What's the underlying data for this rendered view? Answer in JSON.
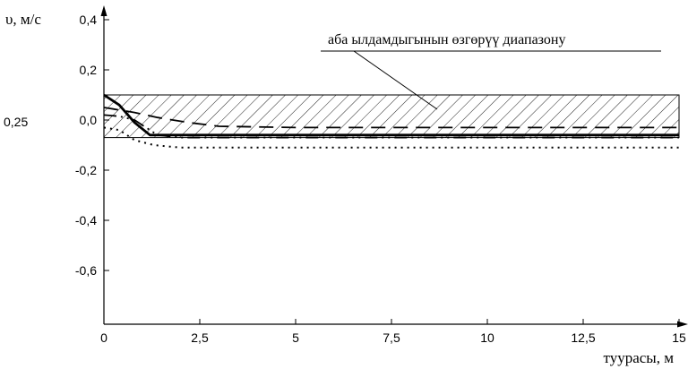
{
  "chart_data": {
    "type": "line",
    "ylabel": "υ, м/с",
    "xlabel": "туурасы, м",
    "annotation": "аба ылдамдыгынын өзгөрүү диапазону",
    "band_level_label": "0,25",
    "xlim": [
      0,
      15
    ],
    "ylim": [
      -0.85,
      0.4
    ],
    "xticks": [
      {
        "value": 0,
        "label": "0"
      },
      {
        "value": 2.5,
        "label": "2,5"
      },
      {
        "value": 5,
        "label": "5"
      },
      {
        "value": 7.5,
        "label": "7,5"
      },
      {
        "value": 10,
        "label": "10"
      },
      {
        "value": 12.5,
        "label": "12,5"
      },
      {
        "value": 15,
        "label": "15"
      }
    ],
    "yticks": [
      {
        "value": 0.4,
        "label": "0,4"
      },
      {
        "value": 0.2,
        "label": "0,2"
      },
      {
        "value": 0.0,
        "label": "0,0"
      },
      {
        "value": -0.2,
        "label": "-0,2"
      },
      {
        "value": -0.4,
        "label": "-0,4"
      },
      {
        "value": -0.6,
        "label": "-0,6"
      }
    ],
    "band": {
      "y_from": -0.07,
      "y_to": 0.1,
      "x_from": 0,
      "x_to": 15
    },
    "series": [
      {
        "style": "solid",
        "x": [
          0,
          0.4,
          0.8,
          1.2,
          2,
          5,
          10,
          15
        ],
        "y": [
          0.1,
          0.06,
          -0.01,
          -0.06,
          -0.06,
          -0.06,
          -0.06,
          -0.06
        ]
      },
      {
        "style": "dash",
        "x": [
          0,
          0.4,
          0.8,
          1.4,
          2.2,
          3,
          5,
          10,
          15
        ],
        "y": [
          0.05,
          0.04,
          0.03,
          0.01,
          -0.01,
          -0.025,
          -0.03,
          -0.03,
          -0.03
        ]
      },
      {
        "style": "dashdotdot",
        "x": [
          0,
          0.4,
          0.8,
          1.4,
          2,
          5,
          10,
          15
        ],
        "y": [
          0.02,
          0.015,
          0.0,
          -0.06,
          -0.07,
          -0.07,
          -0.07,
          -0.07
        ]
      },
      {
        "style": "dotted",
        "x": [
          0,
          0.4,
          0.8,
          1.3,
          2,
          5,
          10,
          15
        ],
        "y": [
          -0.03,
          -0.04,
          -0.08,
          -0.1,
          -0.11,
          -0.11,
          -0.11,
          -0.11
        ]
      }
    ]
  }
}
